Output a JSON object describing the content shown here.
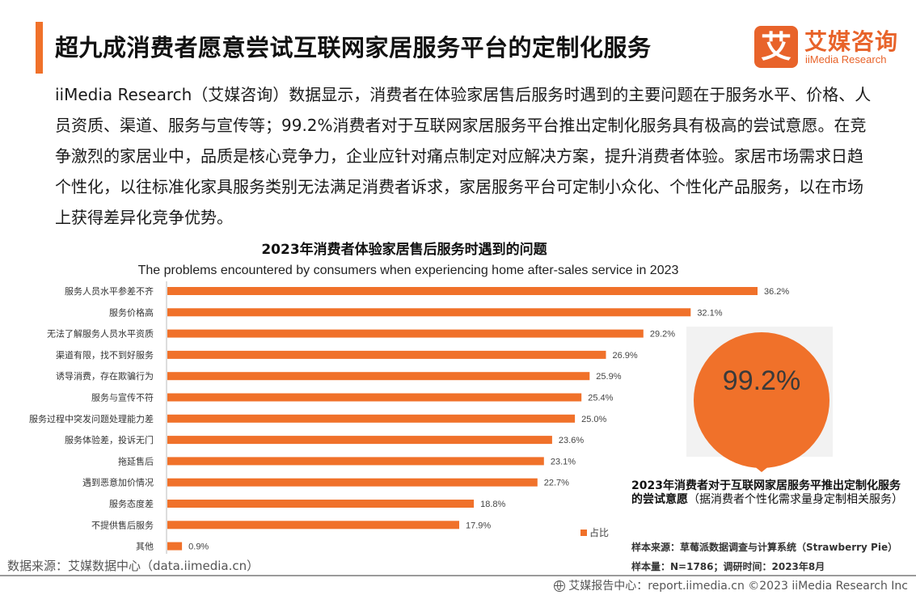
{
  "header": {
    "title": "超九成消费者愿意尝试互联网家居服务平台的定制化服务"
  },
  "logo": {
    "mark": "艾",
    "name_cn": "艾媒咨询",
    "name_en": "iiMedia Research"
  },
  "intro": {
    "text": "iiMedia Research（艾媒咨询）数据显示，消费者在体验家居售后服务时遇到的主要问题在于服务水平、价格、人员资质、渠道、服务与宣传等；99.2%消费者对于互联网家居服务平台推出定制化服务具有极高的尝试意愿。在竞争激烈的家居业中，品质是核心竞争力，企业应针对痛点制定对应解决方案，提升消费者体验。家居市场需求日趋个性化，以往标准化家具服务类别无法满足消费者诉求，家居服务平台可定制小众化、个性化产品服务，以在市场上获得差异化竞争优势。"
  },
  "chart_data": {
    "type": "bar",
    "orientation": "horizontal",
    "title": "2023年消费者体验家居售后服务时遇到的问题",
    "subtitle": "The problems encountered by consumers when experiencing home after-sales service in 2023",
    "categories": [
      "服务人员水平参差不齐",
      "服务价格高",
      "无法了解服务人员水平资质",
      "渠道有限，找不到好服务",
      "诱导消费，存在欺骗行为",
      "服务与宣传不符",
      "服务过程中突发问题处理能力差",
      "服务体验差，投诉无门",
      "拖延售后",
      "遇到恶意加价情况",
      "服务态度差",
      "不提供售后服务",
      "其他"
    ],
    "series": [
      {
        "name": "占比",
        "values": [
          36.2,
          32.1,
          29.2,
          26.9,
          25.9,
          25.4,
          25.0,
          23.6,
          23.1,
          22.7,
          18.8,
          17.9,
          0.9
        ],
        "labels": [
          "36.2%",
          "32.1%",
          "29.2%",
          "26.9%",
          "25.9%",
          "25.4%",
          "25.0%",
          "23.6%",
          "23.1%",
          "22.7%",
          "18.8%",
          "17.9%",
          "0.9%"
        ]
      }
    ],
    "unit": "%",
    "grid": false,
    "legend": "bottom-right",
    "color": "#f0712a"
  },
  "legend": {
    "label": "占比"
  },
  "callout": {
    "value": "99.2%",
    "value_number": 99.2,
    "desc_bold": "2023年消费者对于互联网家居服务平推出定制化服务的尝试意愿",
    "desc_normal": "（据消费者个性化需求量身定制相关服务）"
  },
  "notes": {
    "sample_source": "样本来源：草莓派数据调查与计算系统（Strawberry Pie）",
    "sample_size": "样本量：N=1786；调研时间：2023年8月"
  },
  "source": {
    "text": "数据来源：艾媒数据中心（data.iimedia.cn）"
  },
  "footer": {
    "text": "艾媒报告中心：report.iimedia.cn  ©2023  iiMedia Research  Inc"
  },
  "colors": {
    "accent": "#f0712a",
    "brand": "#e8632a"
  }
}
